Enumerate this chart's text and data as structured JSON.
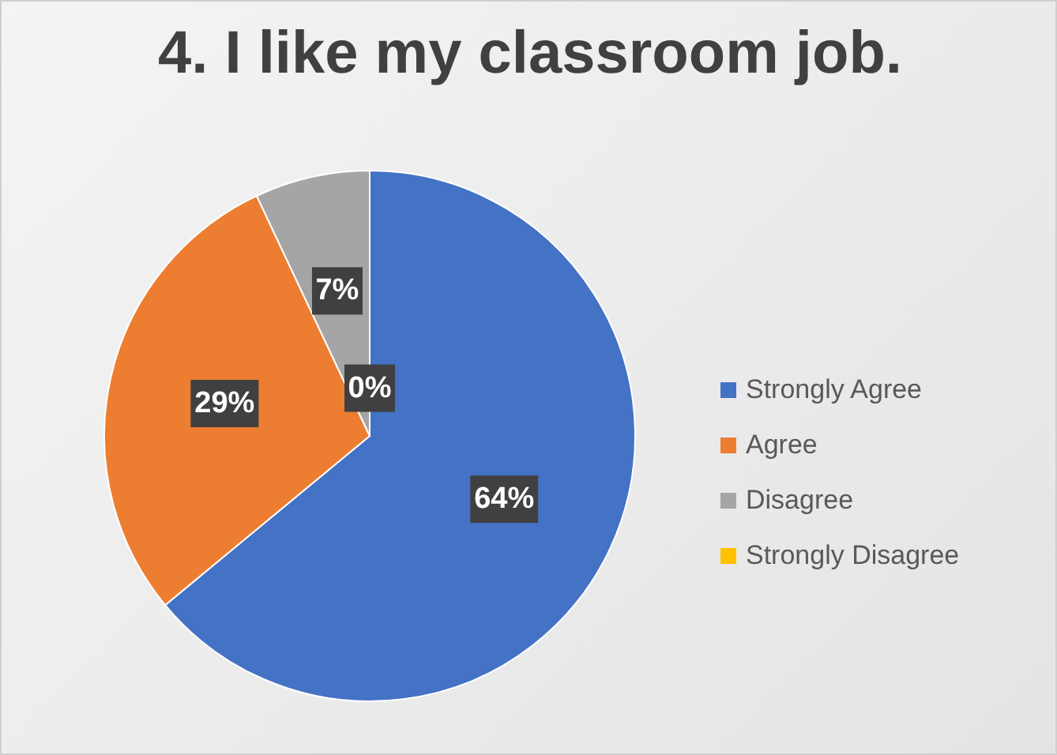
{
  "chart_data": {
    "type": "pie",
    "title": "4. I like my classroom job.",
    "categories": [
      "Strongly Agree",
      "Agree",
      "Disagree",
      "Strongly Disagree"
    ],
    "values": [
      64,
      29,
      7,
      0
    ],
    "colors": [
      "#4472c4",
      "#ed7d31",
      "#a5a5a5",
      "#ffc000"
    ],
    "value_labels": [
      "64%",
      "29%",
      "7%",
      "0%"
    ],
    "legend": "right"
  }
}
